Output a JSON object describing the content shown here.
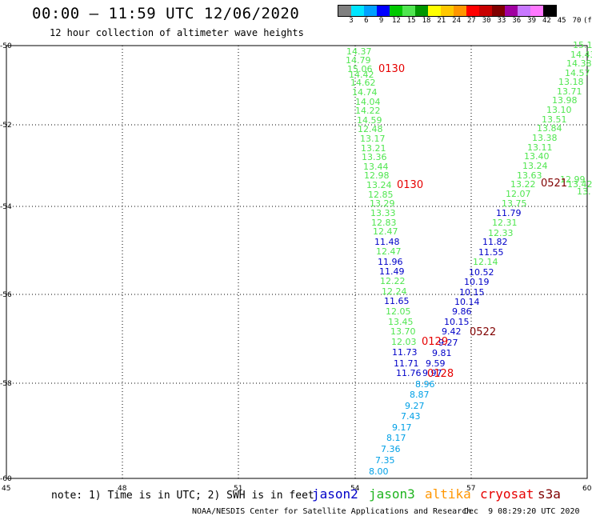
{
  "header": {
    "title": "00:00 – 11:59 UTC 12/06/2020",
    "subtitle": "12 hour collection of altimeter wave heights"
  },
  "colorbar": {
    "colors": [
      "#808080",
      "#00e5ff",
      "#00a0ff",
      "#0000ff",
      "#00c800",
      "#50e650",
      "#009600",
      "#ffff00",
      "#ffc800",
      "#ff9600",
      "#ff0000",
      "#c80000",
      "#800000",
      "#a000a0",
      "#c878ff",
      "#ff78ff",
      "#000000"
    ],
    "labels": [
      "3",
      "6",
      "9",
      "12",
      "15",
      "18",
      "21",
      "24",
      "27",
      "30",
      "33",
      "36",
      "39",
      "42",
      "45",
      "70",
      "(ft)"
    ]
  },
  "axes": {
    "x_labels": [
      "45",
      "48",
      "51",
      "54",
      "57",
      "60"
    ],
    "y_labels": [
      "-50",
      "-52",
      "-54",
      "-56",
      "-58",
      "-60"
    ]
  },
  "tracks": {
    "colors": {
      "jason3": "#50e650",
      "jason2": "#0000c8",
      "cyan": "#00a0e6",
      "time": "#e60000",
      "time_dark": "#800000"
    },
    "track_a_green": [
      "14.37",
      "14.79",
      "15.06",
      "14.42",
      "14.62",
      "14.74",
      "14.04",
      "14.22",
      "14.59",
      "12.48",
      "13.17",
      "13.21",
      "13.36",
      "13.44",
      "12.98",
      "13.24",
      "12.85",
      "13.29",
      "13.33",
      "12.83",
      "12.47"
    ],
    "track_a_blue1": [
      "11.48"
    ],
    "track_a_green2": [
      "12.47"
    ],
    "track_a_blue2": [
      "11.96",
      "11.49"
    ],
    "track_a_green3": [
      "12.22",
      "12.24"
    ],
    "track_a_blue3": [
      "11.65"
    ],
    "track_a_green4": [
      "12.05",
      "13.45",
      "13.70",
      "12.03"
    ],
    "track_a_blue4": [
      "11.73",
      "11.71",
      "11.76"
    ],
    "track_a_cyan": [
      "8.96",
      "8.87",
      "9.27",
      "7.43",
      "9.17",
      "8.17",
      "7.36",
      "7.35",
      "8.00"
    ],
    "track_b_green": [
      "15.1",
      "14.43",
      "14.38",
      "14.57",
      "13.18",
      "13.71",
      "13.98",
      "13.10",
      "13.51",
      "13.84",
      "13.38",
      "13.11",
      "13.40",
      "13.24",
      "13.63",
      "13.22",
      "12.07",
      "13.75"
    ],
    "track_b_blue1": [
      "11.79"
    ],
    "track_b_green2": [
      "12.31",
      "12.33"
    ],
    "track_b_blue2": [
      "11.82",
      "11.55"
    ],
    "track_b_green3": [
      "12.14"
    ],
    "track_b_blue3": [
      "10.52",
      "10.19",
      "10.15",
      "10.14",
      "9.86",
      "10.15",
      "9.42",
      "9.27",
      "9.81",
      "9.59",
      "9.97"
    ],
    "track_c_green": [
      "12.99",
      "13.42",
      "13."
    ],
    "time_labels": [
      "0130",
      "0130",
      "0521",
      "0522",
      "0129",
      "0128"
    ]
  },
  "note": "note: 1) Time is in UTC; 2) SWH is in feet",
  "legend": [
    {
      "name": "jason2",
      "color": "#0000c8"
    },
    {
      "name": "jason3",
      "color": "#1eb41e"
    },
    {
      "name": "altika",
      "color": "#ff9600"
    },
    {
      "name": "cryosat",
      "color": "#e60000"
    },
    {
      "name": "s3a",
      "color": "#800000"
    }
  ],
  "footer": {
    "credit": "NOAA/NESDIS Center for Satellite Applications and Research",
    "timestamp": "Dec  9 08:29:20 UTC 2020"
  }
}
